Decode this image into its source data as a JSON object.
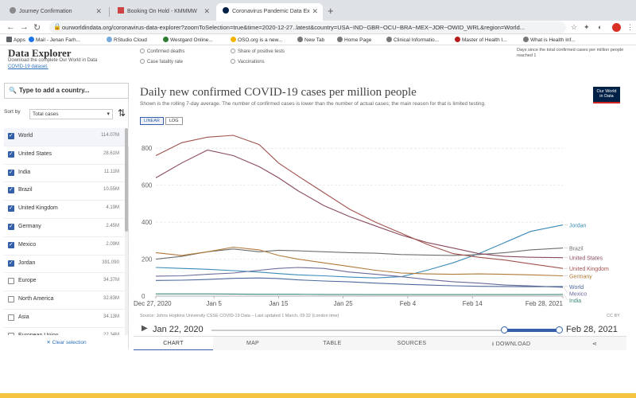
{
  "browser": {
    "tabs": [
      {
        "title": "Journey Confirmation",
        "active": false
      },
      {
        "title": "Booking On Hold - KMMMW",
        "active": false
      },
      {
        "title": "Coronavirus Pandemic Data Ex",
        "active": true
      }
    ],
    "url": "ourworldindata.org/coronavirus-data-explorer?zoomToSelection=true&time=2020-12-27..latest&country=USA~IND~GBR~OCU~BRA~MEX~JOR~OWID_WRL&region=World...",
    "bookmarks": [
      "Apps",
      "Mail - Jenan Farh...",
      "RStudio Cloud",
      "Westgard Online...",
      "OSO.org is a new...",
      "New Tab",
      "Home Page",
      "Clinical Informatio...",
      "Master of Health I...",
      "What is Health Inf..."
    ]
  },
  "explorer": {
    "title": "Data Explorer",
    "subtitle": "Download the complete Our World in Data",
    "subtitle_link": "COVID-19 dataset.",
    "options": [
      "Confirmed deaths",
      "Share of positive tests",
      "Case fatality rate",
      "Vaccinations"
    ],
    "note": "Days since the total confirmed cases per million people reached 1"
  },
  "sidebar": {
    "search_placeholder": "Type to add a country...",
    "sort_label": "Sort by",
    "sort_value": "Total cases",
    "clear_label": "✕ Clear selection",
    "countries": [
      {
        "name": "World",
        "value": "114.07M",
        "checked": true
      },
      {
        "name": "United States",
        "value": "28.61M",
        "checked": true
      },
      {
        "name": "India",
        "value": "11.11M",
        "checked": true
      },
      {
        "name": "Brazil",
        "value": "10.55M",
        "checked": true
      },
      {
        "name": "United Kingdom",
        "value": "4.19M",
        "checked": true
      },
      {
        "name": "Germany",
        "value": "2.45M",
        "checked": true
      },
      {
        "name": "Mexico",
        "value": "2.09M",
        "checked": true
      },
      {
        "name": "Jordan",
        "value": "391,090",
        "checked": true
      },
      {
        "name": "Europe",
        "value": "34.37M",
        "checked": false
      },
      {
        "name": "North America",
        "value": "32.83M",
        "checked": false
      },
      {
        "name": "Asia",
        "value": "34.13M",
        "checked": false
      },
      {
        "name": "European Union",
        "value": "22.34M",
        "checked": false
      }
    ]
  },
  "chart_header": {
    "title": "Daily new confirmed COVID-19 cases per million people",
    "subtitle": "Shown is the rolling 7-day average. The number of confirmed cases is lower than the number of actual cases; the main reason for that is limited testing.",
    "logo_line1": "Our World",
    "logo_line2": "in Data",
    "scale_linear": "LINEAR",
    "scale_log": "LOG",
    "source": "Source: Johns Hopkins University CSSE COVID-19 Data – Last updated 1 March, 09:32 (London time)",
    "license": "CC BY"
  },
  "timeline": {
    "start": "Jan 22, 2020",
    "end": "Feb 28, 2021",
    "range_start_fraction": 0.84,
    "range_end_fraction": 1.0
  },
  "bottom_tabs": [
    "CHART",
    "MAP",
    "TABLE",
    "SOURCES",
    "DOWNLOAD"
  ],
  "chart_data": {
    "type": "line",
    "title": "Daily new confirmed COVID-19 cases per million people",
    "xlabel": "",
    "ylabel": "",
    "ylim": [
      0,
      900
    ],
    "yticks": [
      0,
      200,
      400,
      600,
      800
    ],
    "x_ticks": [
      "Dec 27, 2020",
      "Jan 5",
      "Jan 15",
      "Jan 25",
      "Feb 4",
      "Feb 14",
      "Feb 28, 2021"
    ],
    "x_tick_days": [
      0,
      9,
      19,
      29,
      39,
      49,
      63
    ],
    "x_days": [
      0,
      4,
      8,
      12,
      16,
      19,
      22,
      26,
      30,
      34,
      38,
      42,
      46,
      50,
      54,
      58,
      63
    ],
    "series": [
      {
        "name": "Jordan",
        "color": "#3b8bb8",
        "values": [
          155,
          150,
          145,
          138,
          130,
          122,
          115,
          110,
          103,
          98,
          105,
          140,
          180,
          230,
          290,
          350,
          385
        ]
      },
      {
        "name": "Brazil",
        "color": "#6e6e6e",
        "values": [
          200,
          215,
          240,
          255,
          240,
          248,
          245,
          240,
          235,
          232,
          225,
          222,
          220,
          225,
          235,
          250,
          260
        ]
      },
      {
        "name": "United States",
        "color": "#8a4b5d",
        "values": [
          640,
          720,
          790,
          760,
          700,
          640,
          570,
          490,
          430,
          380,
          330,
          290,
          260,
          230,
          215,
          210,
          208
        ]
      },
      {
        "name": "United Kingdom",
        "color": "#a0524e",
        "values": [
          760,
          830,
          860,
          870,
          820,
          720,
          650,
          560,
          470,
          400,
          340,
          280,
          230,
          210,
          195,
          175,
          150
        ]
      },
      {
        "name": "Germany",
        "color": "#b07a3a",
        "values": [
          235,
          220,
          240,
          265,
          250,
          220,
          200,
          180,
          160,
          140,
          125,
          120,
          118,
          120,
          118,
          115,
          110
        ]
      },
      {
        "name": "Mexico",
        "color": "#6b6b9a",
        "values": [
          108,
          110,
          118,
          125,
          140,
          150,
          155,
          150,
          130,
          118,
          105,
          90,
          78,
          70,
          60,
          55,
          48
        ]
      },
      {
        "name": "World",
        "color": "#4c6a9c",
        "values": [
          85,
          86,
          90,
          96,
          98,
          95,
          88,
          82,
          77,
          70,
          65,
          60,
          56,
          53,
          52,
          51,
          52
        ]
      },
      {
        "name": "India",
        "color": "#3d8a7a",
        "values": [
          12,
          12,
          12,
          11,
          10,
          10,
          10,
          9,
          9,
          8,
          8,
          8,
          8,
          8,
          8,
          8,
          9
        ]
      }
    ]
  }
}
